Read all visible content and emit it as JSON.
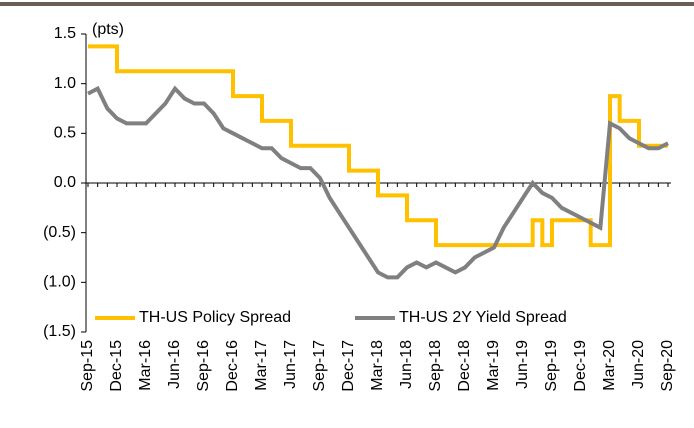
{
  "chart_data": {
    "type": "line",
    "annotation": "(pts)",
    "categories": [
      "Sep-15",
      null,
      null,
      "Dec-15",
      null,
      null,
      "Mar-16",
      null,
      null,
      "Jun-16",
      null,
      null,
      "Sep-16",
      null,
      null,
      "Dec-16",
      null,
      null,
      "Mar-17",
      null,
      null,
      "Jun-17",
      null,
      null,
      "Sep-17",
      null,
      null,
      "Dec-17",
      null,
      null,
      "Mar-18",
      null,
      null,
      "Jun-18",
      null,
      null,
      "Sep-18",
      null,
      null,
      "Dec-18",
      null,
      null,
      "Mar-19",
      null,
      null,
      "Jun-19",
      null,
      null,
      "Sep-19",
      null,
      null,
      "Dec-19",
      null,
      null,
      "Mar-20",
      null,
      null,
      "Jun-20",
      null,
      null,
      "Sep-20"
    ],
    "series": [
      {
        "name": "TH-US Policy Spread",
        "color": "#FFC000",
        "step": "post",
        "values": [
          1.375,
          1.375,
          1.375,
          1.125,
          1.125,
          1.125,
          1.125,
          1.125,
          1.125,
          1.125,
          1.125,
          1.125,
          1.125,
          1.125,
          1.125,
          0.875,
          0.875,
          0.875,
          0.625,
          0.625,
          0.625,
          0.375,
          0.375,
          0.375,
          0.375,
          0.375,
          0.375,
          0.125,
          0.125,
          0.125,
          -0.125,
          -0.125,
          -0.125,
          -0.375,
          -0.375,
          -0.375,
          -0.625,
          -0.625,
          -0.625,
          -0.625,
          -0.625,
          -0.625,
          -0.625,
          -0.625,
          -0.625,
          -0.625,
          -0.375,
          -0.625,
          -0.375,
          -0.375,
          -0.375,
          -0.375,
          -0.625,
          -0.625,
          0.875,
          0.625,
          0.625,
          0.375,
          0.375,
          0.375,
          0.375
        ]
      },
      {
        "name": "TH-US 2Y Yield Spread",
        "color": "#808080",
        "values": [
          0.9,
          0.95,
          0.75,
          0.65,
          0.6,
          0.6,
          0.6,
          0.7,
          0.8,
          0.95,
          0.85,
          0.8,
          0.8,
          0.7,
          0.55,
          0.5,
          0.45,
          0.4,
          0.35,
          0.35,
          0.25,
          0.2,
          0.15,
          0.15,
          0.05,
          -0.15,
          -0.3,
          -0.45,
          -0.6,
          -0.75,
          -0.9,
          -0.95,
          -0.95,
          -0.85,
          -0.8,
          -0.85,
          -0.8,
          -0.85,
          -0.9,
          -0.85,
          -0.75,
          -0.7,
          -0.65,
          -0.45,
          -0.3,
          -0.15,
          0.0,
          -0.1,
          -0.15,
          -0.25,
          -0.3,
          -0.35,
          -0.4,
          -0.45,
          0.6,
          0.55,
          0.45,
          0.4,
          0.35,
          0.35,
          0.4
        ]
      }
    ],
    "ylim": [
      -1.5,
      1.5
    ],
    "yticks": [
      {
        "value": -1.5,
        "label": "(1.5)"
      },
      {
        "value": -1.0,
        "label": "(1.0)"
      },
      {
        "value": -0.5,
        "label": "(0.5)"
      },
      {
        "value": 0,
        "label": "0.0"
      },
      0.5,
      {
        "value": 1.0,
        "label": "1.0"
      },
      1.5
    ],
    "legend": "bottom"
  }
}
